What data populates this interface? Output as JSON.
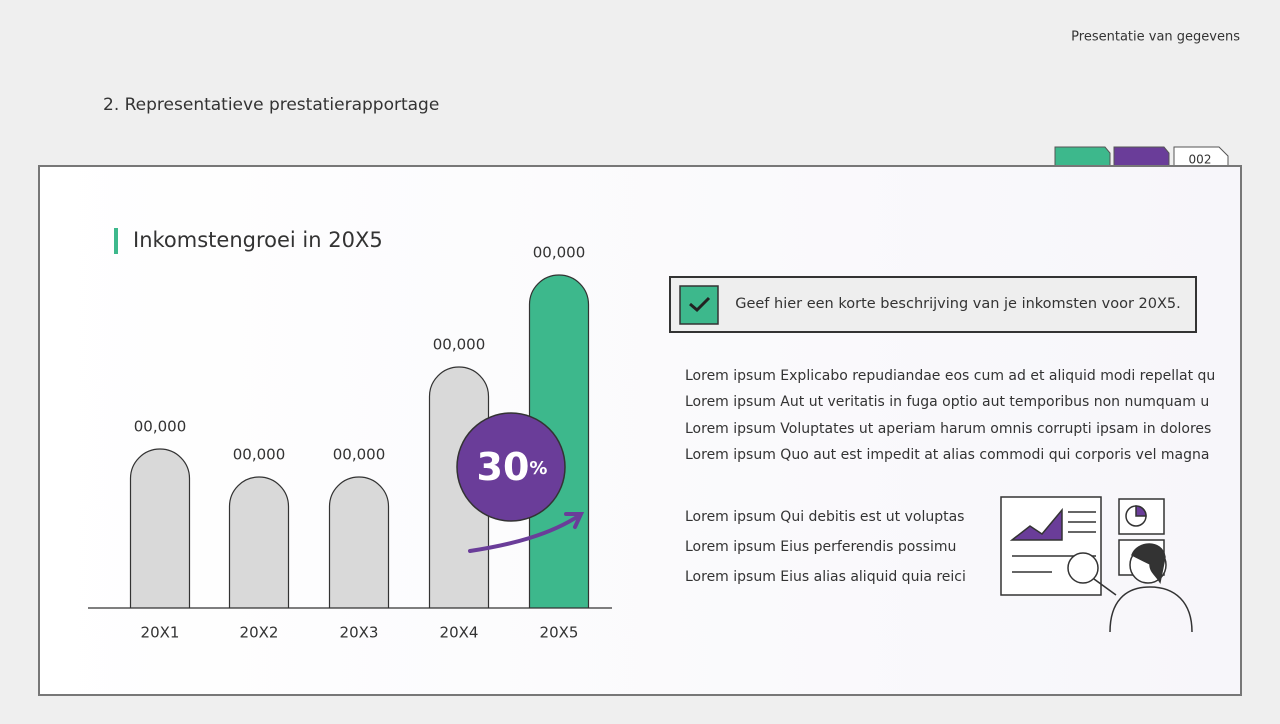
{
  "header": {
    "brand": "Presentatie van gegevens",
    "section": "2. Representatieve prestatierapportage",
    "tab": "002"
  },
  "chart_data": {
    "type": "bar",
    "title": "Inkomstengroei in 20X5",
    "categories": [
      "20X1",
      "20X2",
      "20X3",
      "20X4",
      "20X5"
    ],
    "values": [
      159,
      131,
      131,
      241,
      333
    ],
    "annotations": [
      "00,000",
      "00,000",
      "00,000",
      "00,000",
      "00,000"
    ],
    "colors": [
      "#d9d9d9",
      "#d9d9d9",
      "#d9d9d9",
      "#d9d9d9",
      "#3db88c"
    ],
    "ylim": [
      0,
      340
    ]
  },
  "badge": {
    "number": "30",
    "unit": "%"
  },
  "description": "Geef hier een korte beschrijving van je inkomsten voor 20X5.",
  "paragraphs": [
    "Lorem ipsum Explicabo repudiandae eos cum ad et aliquid modi repellat qu",
    "Lorem ipsum Aut ut veritatis in fuga optio aut temporibus non numquam u",
    "Lorem ipsum Voluptates ut aperiam harum omnis corrupti ipsam in dolores",
    "Lorem ipsum Quo aut est impedit at alias commodi qui corporis vel magna"
  ],
  "list": [
    "Lorem ipsum Qui debitis est ut voluptas",
    "Lorem ipsum Eius perferendis possimu",
    "Lorem ipsum Eius alias aliquid quia reici"
  ]
}
